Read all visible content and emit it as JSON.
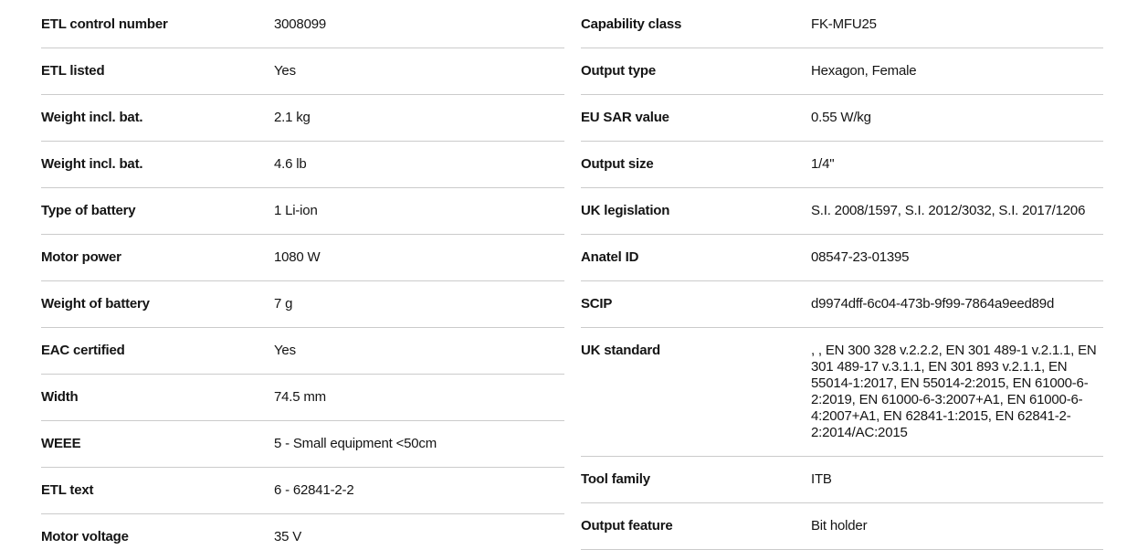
{
  "colors": {
    "background": "#ffffff",
    "divider": "#cbcbcb",
    "text": "#141414"
  },
  "spec_tables": {
    "left": {
      "rows": [
        {
          "label": "ETL control number",
          "value": "3008099"
        },
        {
          "label": "ETL listed",
          "value": "Yes"
        },
        {
          "label": "Weight incl. bat.",
          "value": "2.1 kg"
        },
        {
          "label": "Weight incl. bat.",
          "value": "4.6 lb"
        },
        {
          "label": "Type of battery",
          "value": "1 Li-ion"
        },
        {
          "label": "Motor power",
          "value": "1080 W"
        },
        {
          "label": "Weight of battery",
          "value": "7 g"
        },
        {
          "label": "EAC certified",
          "value": "Yes"
        },
        {
          "label": "Width",
          "value": "74.5 mm"
        },
        {
          "label": "WEEE",
          "value": "5 - Small equipment <50cm"
        },
        {
          "label": "ETL text",
          "value": "6 - 62841-2-2"
        },
        {
          "label": "Motor voltage",
          "value": "35 V"
        }
      ]
    },
    "right": {
      "rows": [
        {
          "label": "Capability class",
          "value": "FK-MFU25"
        },
        {
          "label": "Output type",
          "value": "Hexagon, Female"
        },
        {
          "label": "EU SAR value",
          "value": "0.55 W/kg"
        },
        {
          "label": "Output size",
          "value": "1/4\""
        },
        {
          "label": "UK legislation",
          "value": "S.I. 2008/1597, S.I. 2012/3032, S.I. 2017/1206"
        },
        {
          "label": "Anatel ID",
          "value": "08547-23-01395"
        },
        {
          "label": "SCIP",
          "value": "d9974dff-6c04-473b-9f99-7864a9eed89d"
        },
        {
          "label": "UK standard",
          "value": ", , EN 300 328 v.2.2.2, EN 301 489-1 v.2.1.1, EN 301 489-17 v.3.1.1, EN 301 893 v.2.1.1, EN 55014-1:2017, EN 55014-2:2015, EN 61000-6-2:2019, EN 61000-6-3:2007+A1, EN 61000-6-4:2007+A1, EN 62841-1:2015, EN 62841-2-2:2014/AC:2015"
        },
        {
          "label": "Tool family",
          "value": "ITB"
        },
        {
          "label": "Output feature",
          "value": "Bit holder"
        }
      ]
    }
  }
}
